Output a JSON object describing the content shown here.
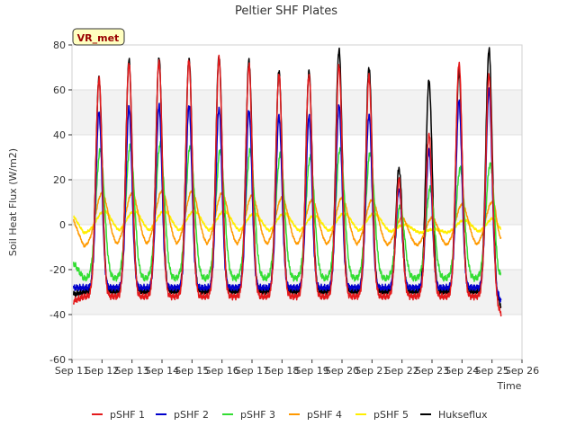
{
  "chart_data": {
    "type": "line",
    "title": "Peltier SHF Plates",
    "xlabel": "Time",
    "ylabel": "Soil Heat Flux (W/m2)",
    "ylim": [
      -60,
      80
    ],
    "xlim": [
      11,
      26
    ],
    "yticks": [
      -60,
      -40,
      -20,
      0,
      20,
      40,
      60,
      80
    ],
    "xticks": [
      {
        "day": 11,
        "label": "Sep 11"
      },
      {
        "day": 12,
        "label": "Sep 12"
      },
      {
        "day": 13,
        "label": "Sep 13"
      },
      {
        "day": 14,
        "label": "Sep 14"
      },
      {
        "day": 15,
        "label": "Sep 15"
      },
      {
        "day": 16,
        "label": "Sep 16"
      },
      {
        "day": 17,
        "label": "Sep 17"
      },
      {
        "day": 18,
        "label": "Sep 18"
      },
      {
        "day": 19,
        "label": "Sep 19"
      },
      {
        "day": 20,
        "label": "Sep 20"
      },
      {
        "day": 21,
        "label": "Sep 21"
      },
      {
        "day": 22,
        "label": "Sep 22"
      },
      {
        "day": 23,
        "label": "Sep 23"
      },
      {
        "day": 24,
        "label": "Sep 24"
      },
      {
        "day": 25,
        "label": "Sep 25"
      },
      {
        "day": 26,
        "label": "Sep 26"
      }
    ],
    "shaded_bands": [
      [
        -40,
        -20
      ],
      [
        0,
        20
      ],
      [
        40,
        60
      ]
    ],
    "annotation": "VR_met",
    "legend_position": "bottom",
    "daily_peaks": {
      "days": [
        11.9,
        12.9,
        13.9,
        14.9,
        15.9,
        16.9,
        17.9,
        18.9,
        19.9,
        20.9,
        21.9,
        22.9,
        23.9,
        24.9
      ],
      "pSHF 1": [
        65,
        72,
        73,
        73,
        74,
        71,
        67,
        67,
        71,
        66,
        20,
        40,
        72,
        67
      ],
      "pSHF 2": [
        50,
        52,
        53,
        53,
        52,
        51,
        48,
        48,
        53,
        49,
        16,
        33,
        55,
        60
      ],
      "pSHF 3": [
        33,
        35,
        36,
        35,
        33,
        33,
        31,
        30,
        34,
        32,
        8,
        16,
        25,
        27
      ],
      "pSHF 4": [
        14,
        14,
        15,
        15,
        14,
        13,
        12,
        11,
        12,
        11,
        3,
        3,
        9,
        10
      ],
      "pSHF 5": [
        6,
        6,
        6,
        6,
        6,
        5,
        5,
        4,
        5,
        5,
        0,
        -2,
        2,
        3
      ],
      "Hukseflux": [
        65,
        73,
        74,
        74,
        75,
        73,
        68,
        68,
        78,
        70,
        25,
        64,
        68,
        78
      ]
    },
    "nightly_lows": {
      "pSHF 1": -32,
      "pSHF 2": -28,
      "pSHF 3": -24,
      "pSHF 4": -10,
      "pSHF 5": -4,
      "Hukseflux": -30
    },
    "start_values": {
      "pSHF 1": -34,
      "pSHF 2": -28,
      "pSHF 3": -17,
      "pSHF 4": 2,
      "pSHF 5": 4,
      "Hukseflux": -31
    },
    "end_values": {
      "pSHF 1": -40,
      "pSHF 2": -34,
      "pSHF 3": -22,
      "pSHF 4": -6,
      "pSHF 5": -2,
      "Hukseflux": -36
    },
    "series": [
      {
        "name": "pSHF 1",
        "color": "#e41a1c"
      },
      {
        "name": "pSHF 2",
        "color": "#0000cc"
      },
      {
        "name": "pSHF 3",
        "color": "#33dd33"
      },
      {
        "name": "pSHF 4",
        "color": "#ff9900"
      },
      {
        "name": "pSHF 5",
        "color": "#ffee00"
      },
      {
        "name": "Hukseflux",
        "color": "#000000"
      }
    ]
  }
}
